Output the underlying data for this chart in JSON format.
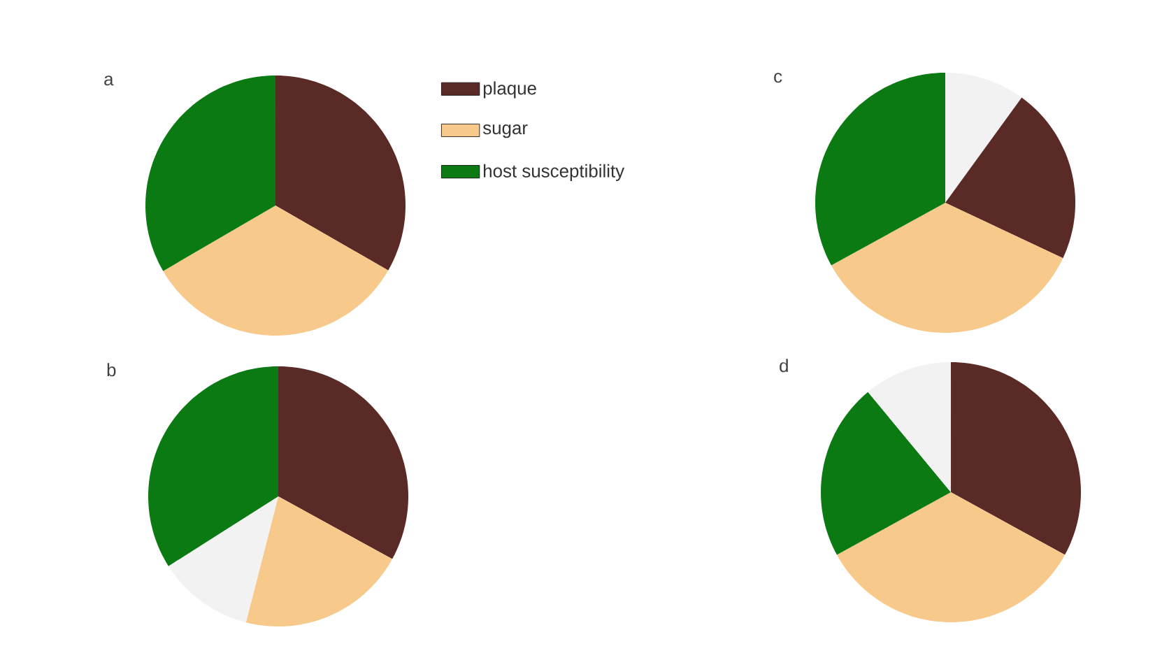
{
  "chart_data": [
    {
      "type": "pie",
      "title": "a",
      "categories": [
        "plaque",
        "sugar",
        "host susceptibility"
      ],
      "values": [
        33.3,
        33.3,
        33.4
      ],
      "colors": [
        "#5a2a26",
        "#f7c98b",
        "#0b7a12"
      ],
      "legend": "right"
    },
    {
      "type": "pie",
      "title": "b",
      "categories": [
        null,
        null,
        null,
        null
      ],
      "values": [
        33,
        21,
        12,
        34
      ],
      "colors": [
        "#5a2a26",
        "#f7c98b",
        "#f2f2f2",
        "#0b7a12"
      ]
    },
    {
      "type": "pie",
      "title": "c",
      "categories": [
        null,
        null,
        null,
        null
      ],
      "values": [
        10,
        22,
        35,
        33
      ],
      "colors": [
        "#f2f2f2",
        "#5a2a26",
        "#f7c98b",
        "#0b7a12"
      ]
    },
    {
      "type": "pie",
      "title": "d",
      "categories": [
        null,
        null,
        null,
        null
      ],
      "values": [
        33,
        34,
        22,
        11
      ],
      "colors": [
        "#5a2a26",
        "#f7c98b",
        "#0b7a12",
        "#f2f2f2"
      ]
    }
  ]
}
